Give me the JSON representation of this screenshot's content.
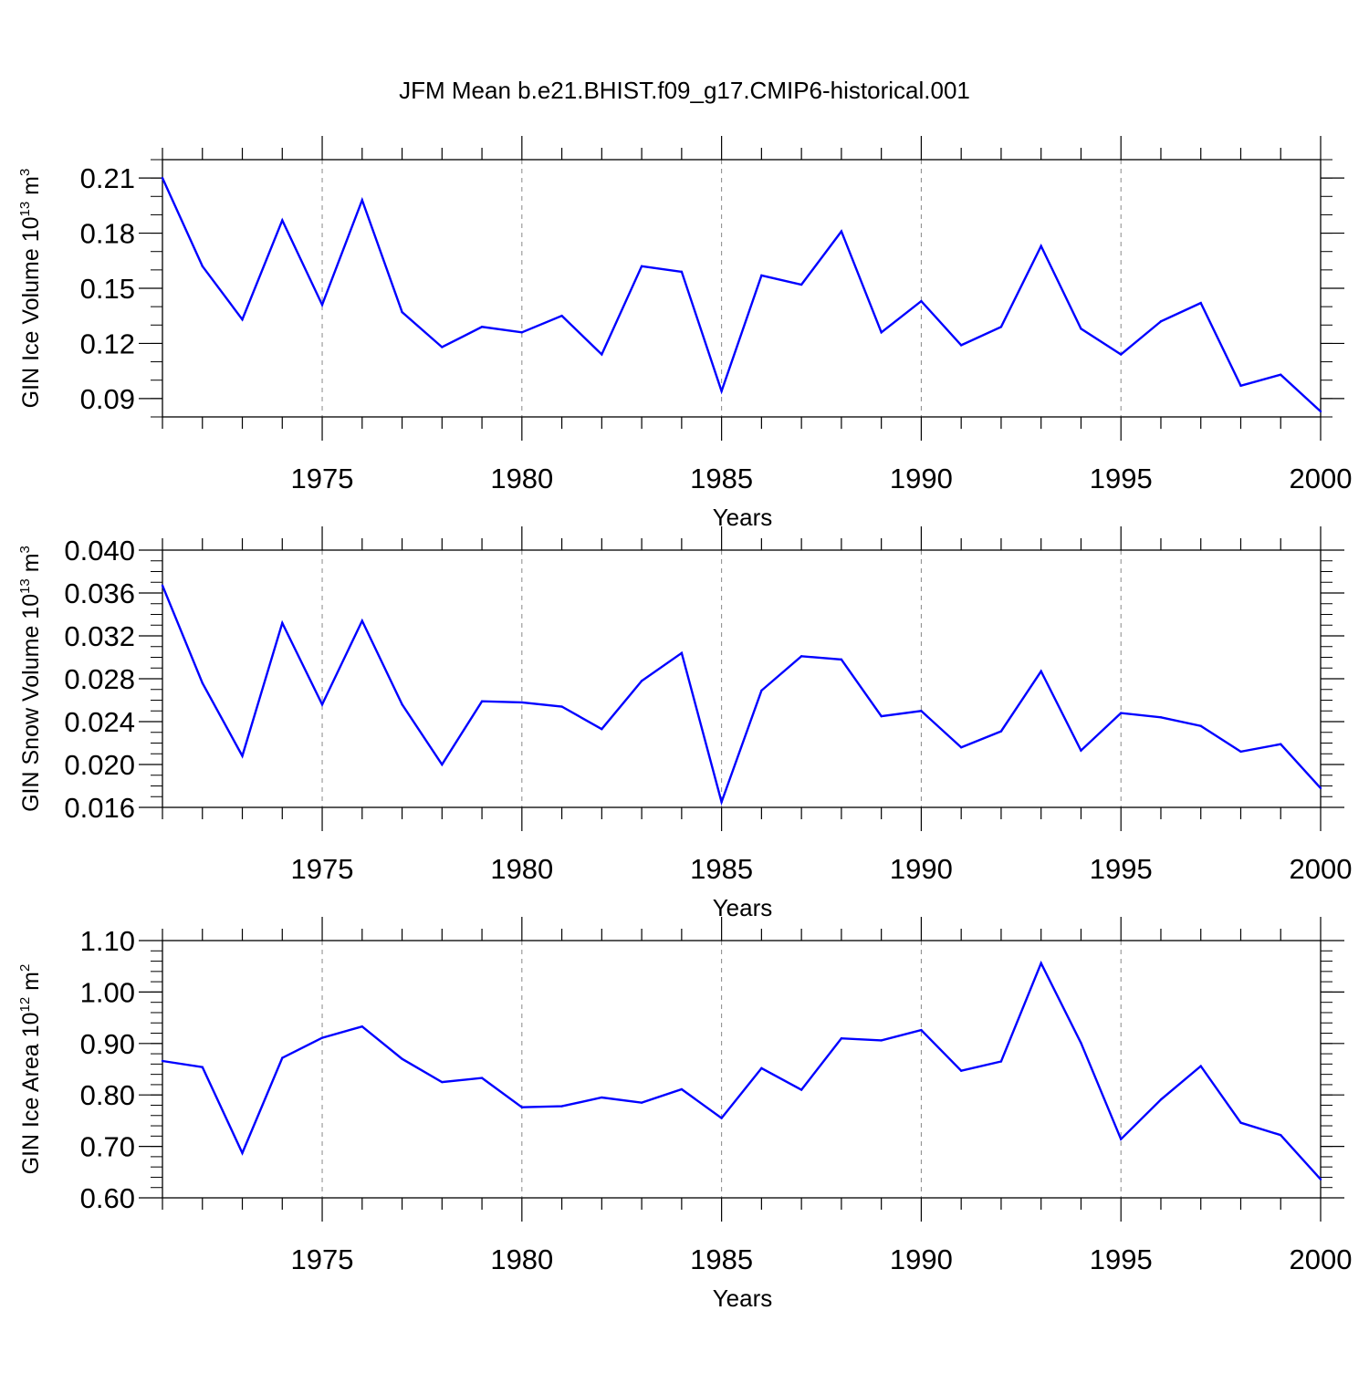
{
  "figure": {
    "title": "JFM Mean b.e21.BHIST.f09_g17.CMIP6-historical.001"
  },
  "colors": {
    "line": "#0000ff",
    "axis": "#000000",
    "grid": "#888888"
  },
  "chart_data": [
    {
      "type": "line",
      "title": "",
      "xlabel": "Years",
      "ylabel": {
        "main": "GIN Ice Volume 10",
        "exp": "13",
        "unit": " m",
        "unit_exp": "3"
      },
      "xlim": [
        1971,
        2000
      ],
      "ylim": [
        0.08,
        0.22
      ],
      "xticks": [
        1975,
        1980,
        1985,
        1990,
        1995,
        2000
      ],
      "xtick_labels": [
        "1975",
        "1980",
        "1985",
        "1990",
        "1995",
        "2000"
      ],
      "yticks": [
        0.09,
        0.12,
        0.15,
        0.18,
        0.21
      ],
      "ytick_labels": [
        "0.09",
        "0.12",
        "0.15",
        "0.18",
        "0.21"
      ],
      "y_minor_step": 0.01,
      "grid": "vertical dashed at major x ticks",
      "x": [
        1971,
        1972,
        1973,
        1974,
        1975,
        1976,
        1977,
        1978,
        1979,
        1980,
        1981,
        1982,
        1983,
        1984,
        1985,
        1986,
        1987,
        1988,
        1989,
        1990,
        1991,
        1992,
        1993,
        1994,
        1995,
        1996,
        1997,
        1998,
        1999,
        2000
      ],
      "series": [
        {
          "name": "GIN Ice Volume",
          "values": [
            0.21,
            0.162,
            0.133,
            0.187,
            0.141,
            0.198,
            0.137,
            0.118,
            0.129,
            0.126,
            0.135,
            0.114,
            0.162,
            0.159,
            0.094,
            0.157,
            0.152,
            0.181,
            0.126,
            0.143,
            0.119,
            0.129,
            0.173,
            0.128,
            0.114,
            0.132,
            0.142,
            0.097,
            0.103,
            0.083
          ]
        }
      ]
    },
    {
      "type": "line",
      "title": "",
      "xlabel": "Years",
      "ylabel": {
        "main": "GIN Snow Volume 10",
        "exp": "13",
        "unit": " m",
        "unit_exp": "3"
      },
      "xlim": [
        1971,
        2000
      ],
      "ylim": [
        0.016,
        0.04
      ],
      "xticks": [
        1975,
        1980,
        1985,
        1990,
        1995,
        2000
      ],
      "xtick_labels": [
        "1975",
        "1980",
        "1985",
        "1990",
        "1995",
        "2000"
      ],
      "yticks": [
        0.016,
        0.02,
        0.024,
        0.028,
        0.032,
        0.036,
        0.04
      ],
      "ytick_labels": [
        "0.016",
        "0.020",
        "0.024",
        "0.028",
        "0.032",
        "0.036",
        "0.040"
      ],
      "y_minor_step": 0.001,
      "grid": "vertical dashed at major x ticks",
      "x": [
        1971,
        1972,
        1973,
        1974,
        1975,
        1976,
        1977,
        1978,
        1979,
        1980,
        1981,
        1982,
        1983,
        1984,
        1985,
        1986,
        1987,
        1988,
        1989,
        1990,
        1991,
        1992,
        1993,
        1994,
        1995,
        1996,
        1997,
        1998,
        1999,
        2000
      ],
      "series": [
        {
          "name": "GIN Snow Volume",
          "values": [
            0.0367,
            0.0276,
            0.0208,
            0.0332,
            0.0256,
            0.0334,
            0.0256,
            0.02,
            0.0259,
            0.0258,
            0.0254,
            0.0233,
            0.0278,
            0.0304,
            0.0165,
            0.0269,
            0.0301,
            0.0298,
            0.0245,
            0.025,
            0.0216,
            0.0231,
            0.0287,
            0.0213,
            0.0248,
            0.0244,
            0.0236,
            0.0212,
            0.0219,
            0.0178
          ]
        }
      ]
    },
    {
      "type": "line",
      "title": "",
      "xlabel": "Years",
      "ylabel": {
        "main": "GIN Ice Area 10",
        "exp": "12",
        "unit": " m",
        "unit_exp": "2"
      },
      "xlim": [
        1971,
        2000
      ],
      "ylim": [
        0.6,
        1.1
      ],
      "xticks": [
        1975,
        1980,
        1985,
        1990,
        1995,
        2000
      ],
      "xtick_labels": [
        "1975",
        "1980",
        "1985",
        "1990",
        "1995",
        "2000"
      ],
      "yticks": [
        0.6,
        0.7,
        0.8,
        0.9,
        1.0,
        1.1
      ],
      "ytick_labels": [
        "0.60",
        "0.70",
        "0.80",
        "0.90",
        "1.00",
        "1.10"
      ],
      "y_minor_step": 0.02,
      "grid": "vertical dashed at major x ticks",
      "x": [
        1971,
        1972,
        1973,
        1974,
        1975,
        1976,
        1977,
        1978,
        1979,
        1980,
        1981,
        1982,
        1983,
        1984,
        1985,
        1986,
        1987,
        1988,
        1989,
        1990,
        1991,
        1992,
        1993,
        1994,
        1995,
        1996,
        1997,
        1998,
        1999,
        2000
      ],
      "series": [
        {
          "name": "GIN Ice Area",
          "values": [
            0.866,
            0.854,
            0.687,
            0.872,
            0.911,
            0.933,
            0.87,
            0.825,
            0.833,
            0.776,
            0.778,
            0.795,
            0.785,
            0.811,
            0.755,
            0.852,
            0.81,
            0.91,
            0.906,
            0.926,
            0.847,
            0.865,
            1.056,
            0.901,
            0.714,
            0.791,
            0.856,
            0.746,
            0.722,
            0.636
          ]
        }
      ]
    }
  ]
}
